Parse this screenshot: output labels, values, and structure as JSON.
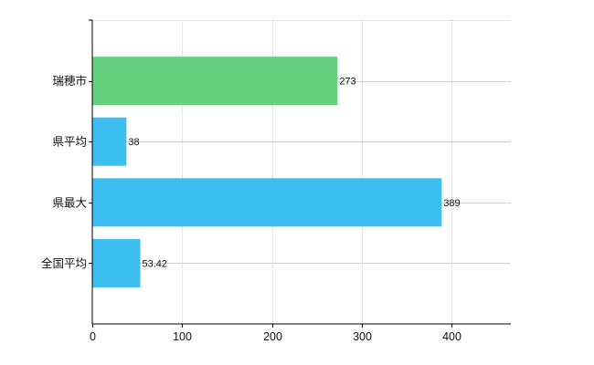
{
  "chart_data": {
    "type": "bar",
    "orientation": "horizontal",
    "categories": [
      "瑞穂市",
      "県平均",
      "県最大",
      "全国平均"
    ],
    "values": [
      273,
      38,
      389,
      53.42
    ],
    "value_labels": [
      "273",
      "38",
      "389",
      "53.42"
    ],
    "bar_colors": [
      "#66d17f",
      "#3cbef1",
      "#3cbef1",
      "#3cbef1"
    ],
    "xlim": [
      0,
      466
    ],
    "xticks": [
      0,
      100,
      200,
      300,
      400
    ],
    "xtick_labels": [
      "0",
      "100",
      "200",
      "300",
      "400"
    ],
    "grid": true,
    "legend": "none",
    "title": "",
    "xlabel": "",
    "ylabel": ""
  }
}
